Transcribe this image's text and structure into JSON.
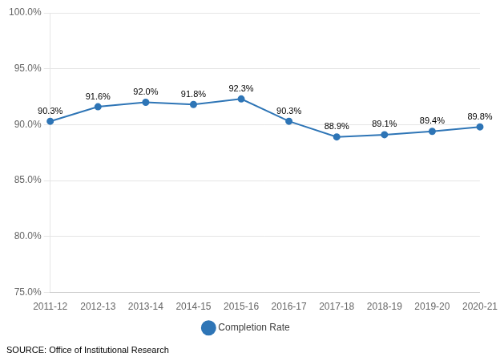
{
  "chart_data": {
    "type": "line",
    "categories": [
      "2011-12",
      "2012-13",
      "2013-14",
      "2014-15",
      "2015-16",
      "2016-17",
      "2017-18",
      "2018-19",
      "2019-20",
      "2020-21"
    ],
    "series": [
      {
        "name": "Completion Rate",
        "color": "#2E75B6",
        "marker": "circle",
        "line_style": "solid",
        "values": [
          90.3,
          91.6,
          92.0,
          91.8,
          92.3,
          90.3,
          88.9,
          89.1,
          89.4,
          89.8
        ],
        "value_labels": [
          "90.3%",
          "91.6%",
          "92.0%",
          "91.8%",
          "92.3%",
          "90.3%",
          "88.9%",
          "89.1%",
          "89.4%",
          "89.8%"
        ]
      }
    ],
    "data_labels": true,
    "ylim": [
      75.0,
      100.0
    ],
    "yticks": [
      {
        "value": 75.0,
        "label": "75.0%"
      },
      {
        "value": 80.0,
        "label": "80.0%"
      },
      {
        "value": 85.0,
        "label": "85.0%"
      },
      {
        "value": 90.0,
        "label": "90.0%"
      },
      {
        "value": 95.0,
        "label": "95.0%"
      },
      {
        "value": 100.0,
        "label": "100.0%"
      }
    ],
    "grid": true,
    "legend": "bottom",
    "annotations": [
      "SOURCE: Office of Institutional Research"
    ]
  }
}
